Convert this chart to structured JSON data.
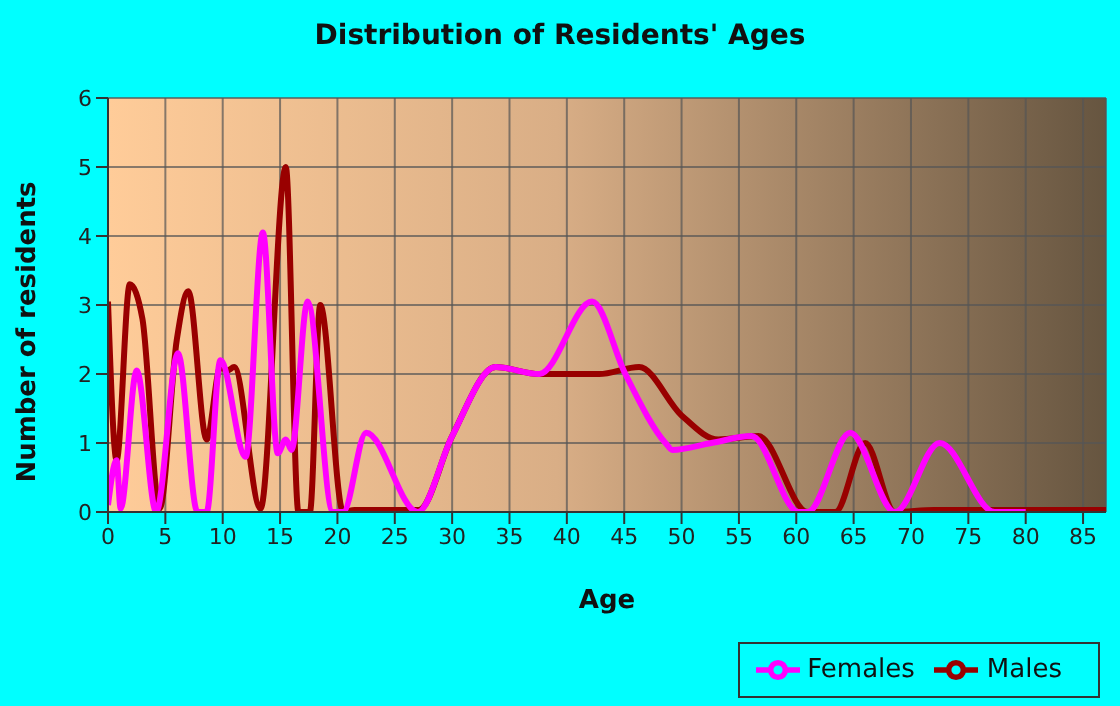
{
  "chart_data": {
    "type": "line",
    "title": "Distribution of Residents' Ages",
    "xlabel": "Age",
    "ylabel": "Number of residents",
    "xlim": [
      0,
      87
    ],
    "xticks": [
      0,
      5,
      10,
      15,
      20,
      25,
      30,
      35,
      40,
      45,
      50,
      55,
      60,
      65,
      70,
      75,
      80,
      85
    ],
    "ylim": [
      0,
      6
    ],
    "yticks": [
      0,
      1,
      2,
      3,
      4,
      5,
      6
    ],
    "grid": true,
    "legend": "bottom right",
    "marker": "none",
    "line_style": "solid",
    "series": [
      {
        "name": "Males",
        "color": "#990000",
        "x": [
          0,
          0.75,
          1.9,
          3,
          4.5,
          6,
          7,
          8.6,
          9.8,
          10.4,
          11,
          13.3,
          15.5,
          16.6,
          17.6,
          18.5,
          20.5,
          21.5,
          27.1,
          30,
          33.8,
          37.6,
          42.8,
          46.3,
          50,
          53.2,
          56.7,
          61,
          63.4,
          66,
          68.6,
          72,
          80,
          87
        ],
        "values": [
          3.05,
          0.75,
          3.3,
          2.8,
          0.05,
          2.5,
          3.2,
          1.05,
          2.1,
          2.05,
          2.1,
          0.05,
          5,
          0,
          0,
          3,
          0,
          0.03,
          0.03,
          1.1,
          2.1,
          2,
          2,
          2.1,
          1.4,
          1.05,
          1.1,
          0,
          0,
          1,
          0,
          0.03,
          0.03,
          0.03
        ]
      },
      {
        "name": "Females",
        "color": "#ff00ff",
        "x": [
          0,
          0.75,
          1.1,
          2.5,
          4.2,
          6.1,
          7.8,
          8.6,
          9.8,
          12,
          13.5,
          14.8,
          15.5,
          16,
          17.4,
          19.6,
          20.5,
          22.5,
          27,
          30,
          33.8,
          37.6,
          42.2,
          45.1,
          48.6,
          49.2,
          52.6,
          56.1,
          60.2,
          61,
          64.7,
          68.6,
          72.5,
          77.3,
          80
        ],
        "values": [
          0.1,
          0.75,
          0.05,
          2.05,
          0,
          2.3,
          0,
          0,
          2.2,
          0.8,
          4.05,
          0.85,
          1.05,
          0.9,
          3.05,
          0,
          0,
          1.15,
          0,
          1.1,
          2.1,
          2,
          3.05,
          2,
          1,
          0.9,
          1,
          1.1,
          0,
          0,
          1.15,
          0,
          1,
          0,
          0
        ]
      }
    ]
  }
}
